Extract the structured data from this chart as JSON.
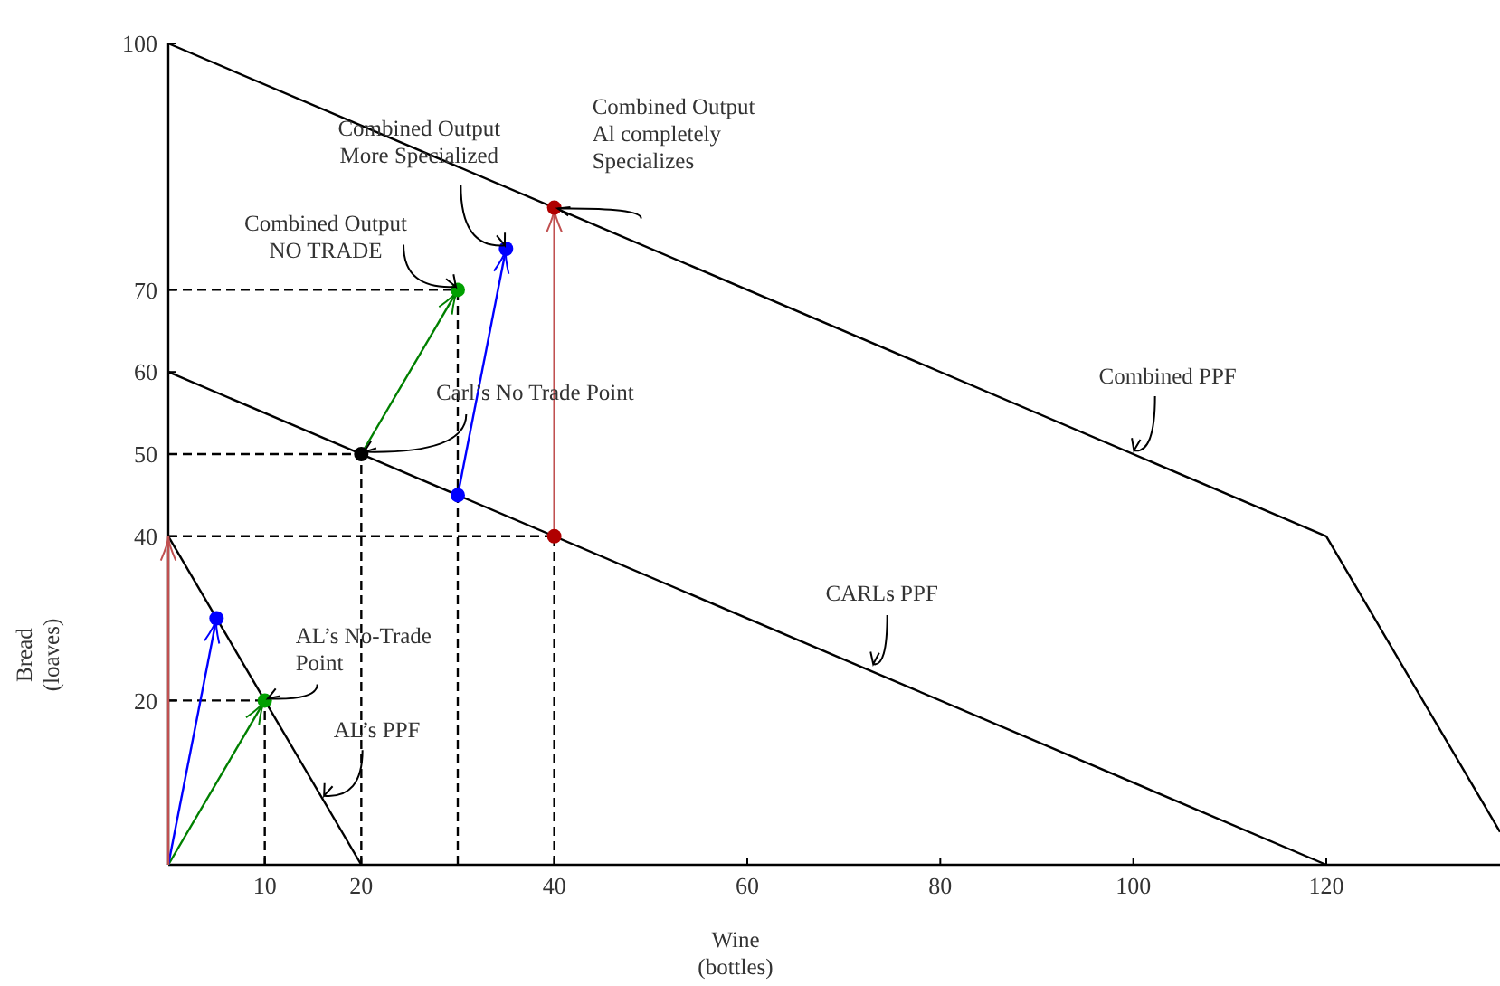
{
  "chart_data": {
    "type": "line",
    "xlabel": "Wine\n(bottles)",
    "ylabel": "Bread\n(loaves)",
    "xlim": [
      0,
      138
    ],
    "ylim": [
      0,
      100
    ],
    "xticks": [
      10,
      20,
      40,
      60,
      80,
      100,
      120
    ],
    "yticks": [
      20,
      40,
      50,
      60,
      70,
      100
    ],
    "grid": false,
    "marker": "none",
    "line_style": "solid",
    "series": [
      {
        "type": "line",
        "color": "#000000",
        "x": [
          0,
          20
        ],
        "values": [
          40,
          0
        ]
      },
      {
        "type": "line",
        "color": "#000000",
        "x": [
          0,
          120
        ],
        "values": [
          60,
          0
        ]
      },
      {
        "type": "line",
        "color": "#000000",
        "x": [
          0,
          120,
          138
        ],
        "values": [
          100,
          40,
          4
        ]
      },
      {
        "type": "line",
        "color": "#000000",
        "line_style": "dashed",
        "x": [
          0,
          30
        ],
        "values": [
          70,
          70
        ]
      },
      {
        "type": "line",
        "color": "#000000",
        "line_style": "dashed",
        "x": [
          30,
          30
        ],
        "values": [
          0,
          70
        ]
      },
      {
        "type": "line",
        "color": "#000000",
        "line_style": "dashed",
        "x": [
          0,
          20
        ],
        "values": [
          50,
          50
        ]
      },
      {
        "type": "line",
        "color": "#000000",
        "line_style": "dashed",
        "x": [
          20,
          20
        ],
        "values": [
          0,
          50
        ]
      },
      {
        "type": "line",
        "color": "#000000",
        "line_style": "dashed",
        "x": [
          0,
          40
        ],
        "values": [
          40,
          40
        ]
      },
      {
        "type": "line",
        "color": "#000000",
        "line_style": "dashed",
        "x": [
          40,
          40
        ],
        "values": [
          0,
          40
        ]
      },
      {
        "type": "line",
        "color": "#000000",
        "line_style": "dashed",
        "x": [
          0,
          10
        ],
        "values": [
          20,
          20
        ]
      },
      {
        "type": "line",
        "color": "#000000",
        "line_style": "dashed",
        "x": [
          10,
          10
        ],
        "values": [
          0,
          20
        ]
      },
      {
        "color": "#008000",
        "marker": "none",
        "x": [
          0,
          10
        ],
        "values": [
          0,
          20
        ]
      },
      {
        "color": "#008000",
        "marker": "none",
        "x": [
          20,
          30
        ],
        "values": [
          50,
          70
        ]
      },
      {
        "color": "#0000ff",
        "marker": "none",
        "x": [
          0,
          5
        ],
        "values": [
          0,
          30
        ]
      },
      {
        "color": "#0000ff",
        "marker": "none",
        "x": [
          30,
          35
        ],
        "values": [
          45,
          75
        ]
      },
      {
        "color": "#c05050",
        "marker": "none",
        "x": [
          0,
          0
        ],
        "values": [
          0,
          40
        ]
      },
      {
        "color": "#c05050",
        "marker": "none",
        "x": [
          40,
          40
        ],
        "values": [
          40,
          80
        ]
      },
      {
        "type": "scatter",
        "marker": "circle",
        "x": [
          10,
          20,
          30,
          5,
          30,
          35,
          40,
          40
        ],
        "values": [
          20,
          50,
          70,
          30,
          45,
          75,
          40,
          80
        ],
        "colors": [
          "#00a000",
          "#000000",
          "#00a000",
          "#0000ff",
          "#0000ff",
          "#0000ff",
          "#b00000",
          "#b00000"
        ]
      }
    ],
    "annotations": [
      {
        "text": "Combined Output\nNO TRADE",
        "x": 30,
        "y": 70
      },
      {
        "text": "Combined Output\nMore Specialized",
        "x": 35,
        "y": 75
      },
      {
        "text": "Combined Output\nAl completely\nSpecializes",
        "x": 40,
        "y": 80
      },
      {
        "text": "Carl’s No Trade Point",
        "x": 20,
        "y": 50
      },
      {
        "text": "Combined PPF",
        "x": 100,
        "y": 50
      },
      {
        "text": "CARLs PPF",
        "x": 73,
        "y": 24
      },
      {
        "text": "AL’s No-Trade\nPoint",
        "x": 10,
        "y": 20
      },
      {
        "text": "AL’s PPF",
        "x": 16,
        "y": 8
      }
    ]
  }
}
